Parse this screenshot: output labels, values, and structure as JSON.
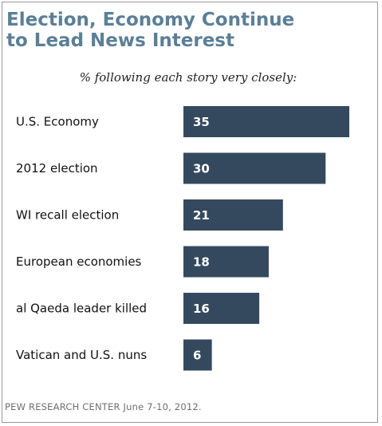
{
  "title": "Election, Economy Continue\nto Lead News Interest",
  "subtitle": "% following each story very closely:",
  "source": "PEW RESEARCH  CENTER June 7-10, 2012.",
  "colors": {
    "bar": "#34495e",
    "title": "#5b7f97",
    "value_text": "#ffffff"
  },
  "chart_data": {
    "type": "bar",
    "orientation": "horizontal",
    "title": "Election, Economy Continue to Lead News Interest",
    "subtitle": "% following each story very closely:",
    "categories": [
      "U.S. Economy",
      "2012 election",
      "WI recall election",
      "European economies",
      "al Qaeda leader killed",
      "Vatican and U.S. nuns"
    ],
    "values": [
      35,
      30,
      21,
      18,
      16,
      6
    ],
    "xlim": [
      0,
      35
    ],
    "grid": false,
    "legend": "none",
    "data_labels": true
  }
}
